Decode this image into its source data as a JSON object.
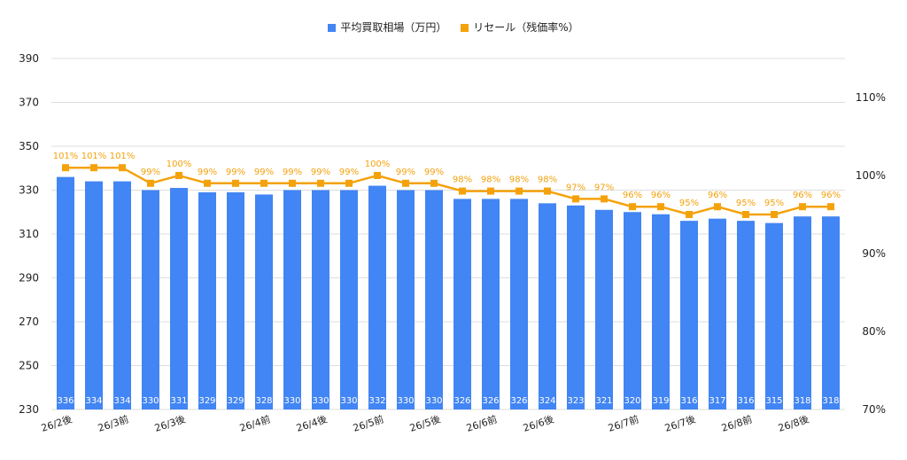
{
  "colors": {
    "bars": "#4285F4",
    "line": "#F4A20C",
    "grid": "#dddddd",
    "text": "#222222"
  },
  "legend": {
    "bar_label": "平均買取相場（万円）",
    "line_label": "リセール（残価率%）"
  },
  "chart_data": {
    "type": "bar+line",
    "categories": [
      "26/2後",
      "",
      "26/3前",
      "",
      "26/3後",
      "",
      "",
      "26/4前",
      "",
      "26/4後",
      "",
      "26/5前",
      "",
      "26/5後",
      "",
      "26/6前",
      "",
      "26/6後",
      "",
      "",
      "26/7前",
      "",
      "26/7後",
      "",
      "26/8前",
      "",
      "26/8後",
      ""
    ],
    "series": [
      {
        "name": "平均買取相場（万円）",
        "type": "bar",
        "axis": "left",
        "values": [
          336,
          334,
          334,
          330,
          331,
          329,
          329,
          328,
          330,
          330,
          330,
          332,
          330,
          330,
          326,
          326,
          326,
          324,
          323,
          321,
          320,
          319,
          316,
          317,
          316,
          315,
          318,
          318
        ]
      },
      {
        "name": "リセール（残価率%）",
        "type": "line",
        "axis": "right",
        "values": [
          101,
          101,
          101,
          99,
          100,
          99,
          99,
          99,
          99,
          99,
          99,
          100,
          99,
          99,
          98,
          98,
          98,
          98,
          97,
          97,
          96,
          96,
          95,
          96,
          95,
          95,
          96,
          96
        ]
      }
    ],
    "y_left": {
      "min": 230,
      "max": 390,
      "ticks": [
        230,
        250,
        270,
        290,
        310,
        330,
        350,
        370,
        390
      ]
    },
    "y_right": {
      "min": 70,
      "max": 115,
      "ticks": [
        "70%",
        "80%",
        "90%",
        "100%",
        "110%"
      ]
    },
    "grid": true,
    "legend_position": "top"
  }
}
